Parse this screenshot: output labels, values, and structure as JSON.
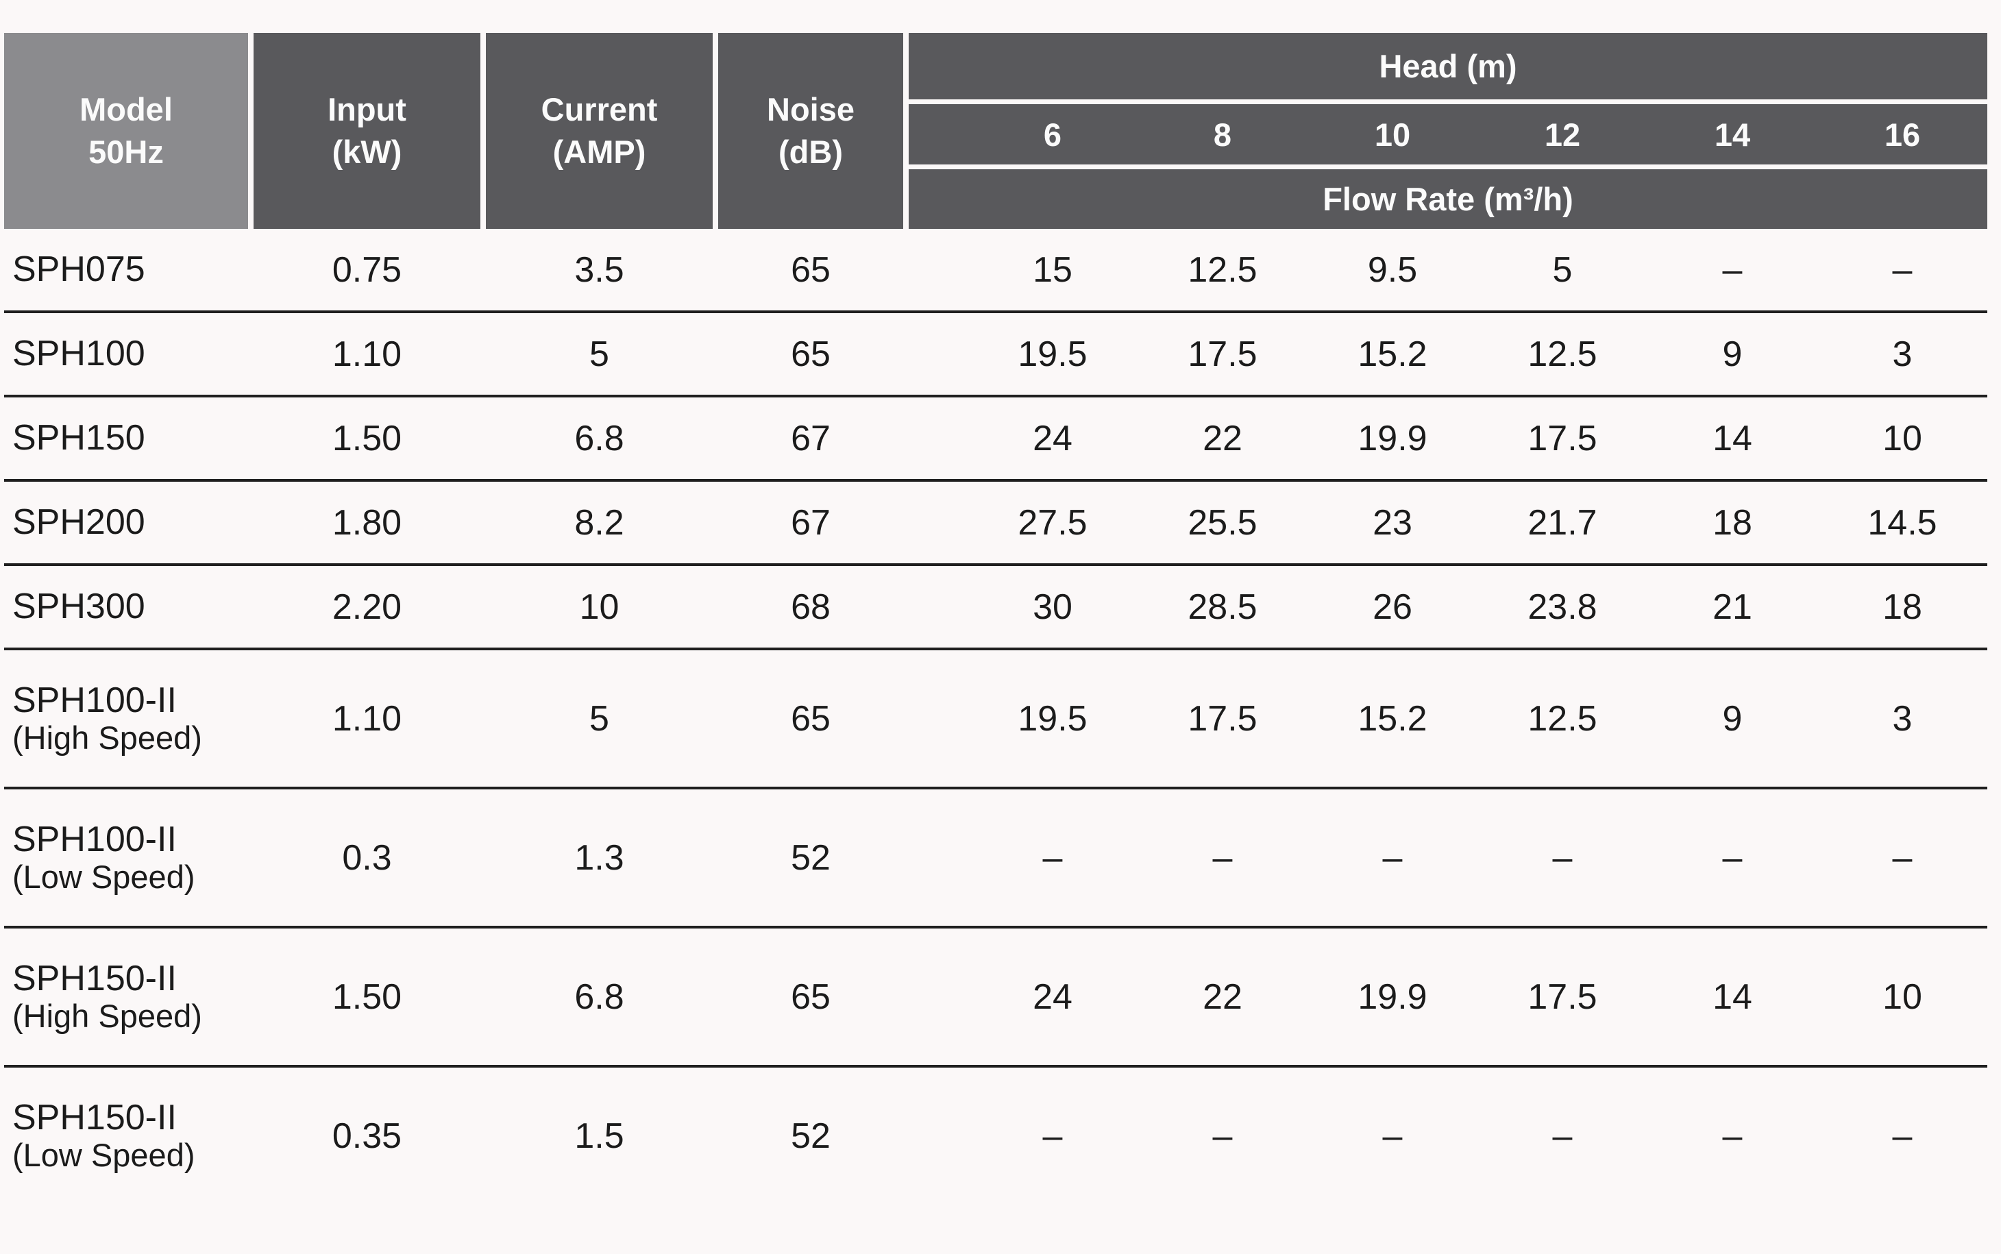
{
  "colors": {
    "page_bg": "#fbf8f8",
    "header_bg": "#59595c",
    "model_header_bg": "#8b8b8e",
    "header_text": "#fbfbfb",
    "text": "#1b1b1b",
    "line": "#1f1f1f"
  },
  "table": {
    "headers": {
      "model_line1": "Model",
      "model_line2": "50Hz",
      "input_line1": "Input",
      "input_line2": "(kW)",
      "current_line1": "Current",
      "current_line2": "(AMP)",
      "noise_line1": "Noise",
      "noise_line2": "(dB)",
      "head_group": "Head (m)",
      "head_values": [
        "6",
        "8",
        "10",
        "12",
        "14",
        "16"
      ],
      "flow_label": "Flow Rate (m³/h)"
    },
    "rows": [
      {
        "model": "SPH075",
        "model_sub": "",
        "input": "0.75",
        "current": "3.5",
        "noise": "65",
        "flow": [
          "15",
          "12.5",
          "9.5",
          "5",
          "–",
          "–"
        ]
      },
      {
        "model": "SPH100",
        "model_sub": "",
        "input": "1.10",
        "current": "5",
        "noise": "65",
        "flow": [
          "19.5",
          "17.5",
          "15.2",
          "12.5",
          "9",
          "3"
        ]
      },
      {
        "model": "SPH150",
        "model_sub": "",
        "input": "1.50",
        "current": "6.8",
        "noise": "67",
        "flow": [
          "24",
          "22",
          "19.9",
          "17.5",
          "14",
          "10"
        ]
      },
      {
        "model": "SPH200",
        "model_sub": "",
        "input": "1.80",
        "current": "8.2",
        "noise": "67",
        "flow": [
          "27.5",
          "25.5",
          "23",
          "21.7",
          "18",
          "14.5"
        ]
      },
      {
        "model": "SPH300",
        "model_sub": "",
        "input": "2.20",
        "current": "10",
        "noise": "68",
        "flow": [
          "30",
          "28.5",
          "26",
          "23.8",
          "21",
          "18"
        ]
      },
      {
        "model": "SPH100-II",
        "model_sub": "(High Speed)",
        "input": "1.10",
        "current": "5",
        "noise": "65",
        "flow": [
          "19.5",
          "17.5",
          "15.2",
          "12.5",
          "9",
          "3"
        ]
      },
      {
        "model": "SPH100-II",
        "model_sub": "(Low Speed)",
        "input": "0.3",
        "current": "1.3",
        "noise": "52",
        "flow": [
          "–",
          "–",
          "–",
          "–",
          "–",
          "–"
        ]
      },
      {
        "model": "SPH150-II",
        "model_sub": "(High Speed)",
        "input": "1.50",
        "current": "6.8",
        "noise": "65",
        "flow": [
          "24",
          "22",
          "19.9",
          "17.5",
          "14",
          "10"
        ]
      },
      {
        "model": "SPH150-II",
        "model_sub": "(Low Speed)",
        "input": "0.35",
        "current": "1.5",
        "noise": "52",
        "flow": [
          "–",
          "–",
          "–",
          "–",
          "–",
          "–"
        ]
      }
    ]
  }
}
